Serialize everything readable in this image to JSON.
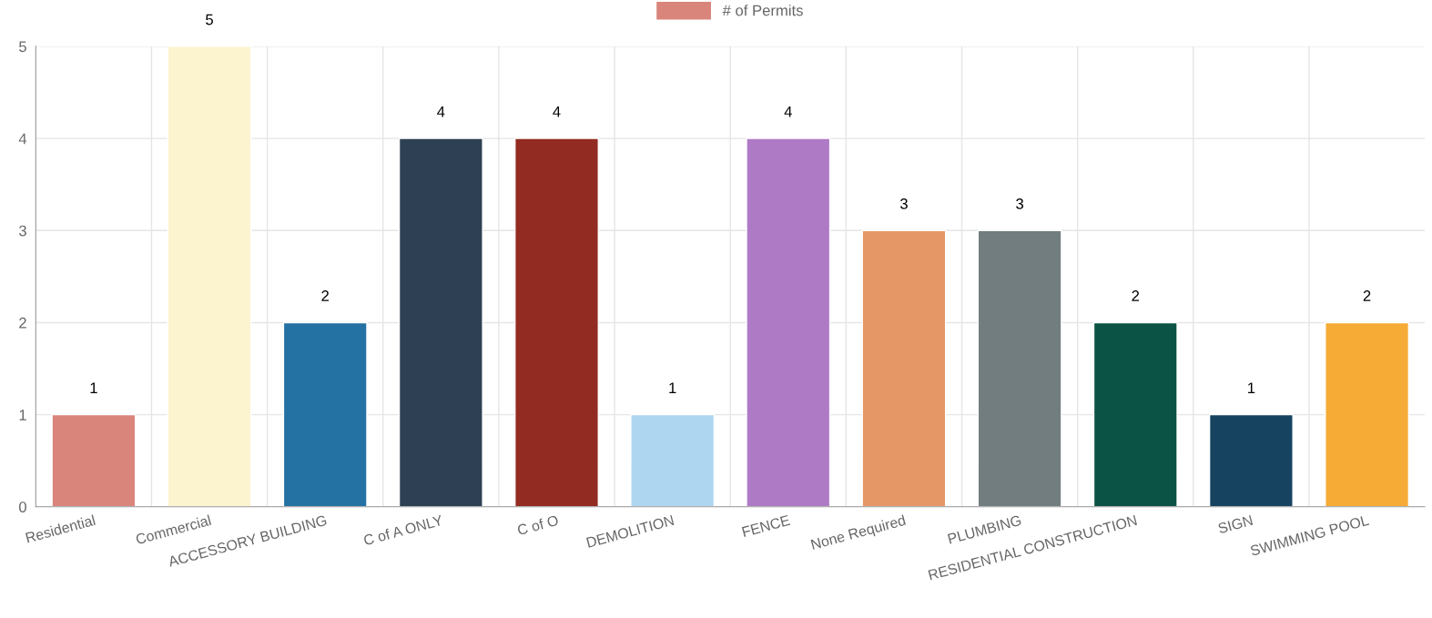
{
  "chart_data": {
    "type": "bar",
    "categories": [
      "Residential",
      "Commercial",
      "ACCESSORY BUILDING",
      "C of A ONLY",
      "C of O",
      "DEMOLITION",
      "FENCE",
      "None Required",
      "PLUMBING",
      "RESIDENTIAL CONSTRUCTION",
      "SIGN",
      "SWIMMING POOL"
    ],
    "series": [
      {
        "name": "# of Permits",
        "colors": [
          "#d9857c",
          "#fcf3cf",
          "#2471a3",
          "#2e4053",
          "#922b21",
          "#aed6f1",
          "#af7ac5",
          "#e59866",
          "#717d7e",
          "#0b5345",
          "#154360",
          "#f5ab35"
        ],
        "values": [
          1,
          5,
          2,
          4,
          4,
          1,
          4,
          3,
          3,
          2,
          1,
          2
        ]
      }
    ],
    "ylim": [
      0,
      5
    ],
    "yticks": [
      0,
      1,
      2,
      3,
      4,
      5
    ],
    "grid": true,
    "legend": "top",
    "data_labels": true
  }
}
